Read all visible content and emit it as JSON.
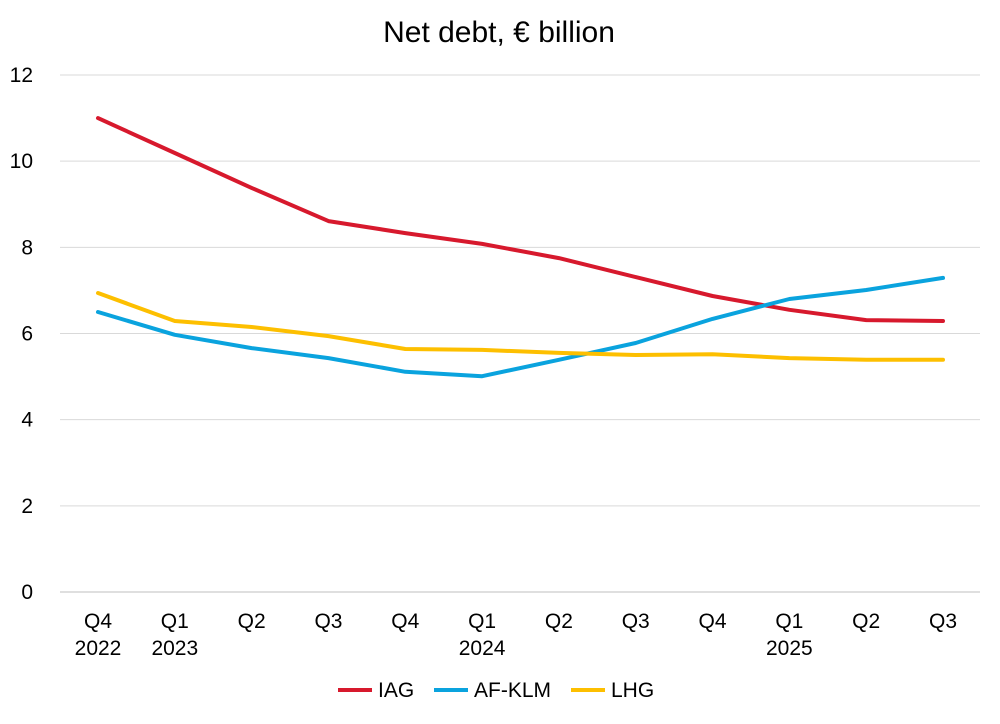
{
  "chart_data": {
    "type": "line",
    "title": "Net debt, € billion",
    "xlabel": "",
    "ylabel": "",
    "ylim": [
      0,
      12
    ],
    "yticks": [
      0,
      2,
      4,
      6,
      8,
      10,
      12
    ],
    "grid": true,
    "legend_position": "bottom",
    "categories": [
      [
        "Q4",
        "2022"
      ],
      [
        "Q1",
        "2023"
      ],
      [
        "Q2",
        ""
      ],
      [
        "Q3",
        ""
      ],
      [
        "Q4",
        ""
      ],
      [
        "Q1",
        "2024"
      ],
      [
        "Q2",
        ""
      ],
      [
        "Q3",
        ""
      ],
      [
        "Q4",
        ""
      ],
      [
        "Q1",
        "2025"
      ],
      [
        "Q2",
        ""
      ],
      [
        "Q3",
        ""
      ]
    ],
    "series": [
      {
        "name": "IAG",
        "color": "#d7192d",
        "values": [
          11.0,
          10.19,
          9.38,
          8.61,
          8.33,
          8.08,
          7.75,
          7.31,
          6.87,
          6.55,
          6.31,
          6.29
        ]
      },
      {
        "name": "AF-KLM",
        "color": "#0aa3de",
        "values": [
          6.5,
          5.97,
          5.66,
          5.43,
          5.11,
          5.01,
          5.39,
          5.78,
          6.34,
          6.8,
          7.01,
          7.29
        ]
      },
      {
        "name": "LHG",
        "color": "#fdbf00",
        "values": [
          6.94,
          6.29,
          6.15,
          5.94,
          5.64,
          5.62,
          5.55,
          5.5,
          5.52,
          5.43,
          5.39,
          5.39
        ]
      }
    ]
  }
}
